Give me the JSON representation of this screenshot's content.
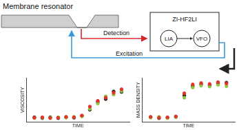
{
  "diagram": {
    "membrane_label": "Membrane resonator",
    "instrument": "ZI-HF2LI",
    "blocks": [
      "LIA",
      "VFO"
    ],
    "detection": "Detection",
    "excitation": "Excitation"
  },
  "chart_data": [
    {
      "type": "scatter",
      "xlabel": "TIME",
      "ylabel": "VISCOSITY",
      "tick_labels": false,
      "grid": false,
      "marker": "circle",
      "xlim": [
        0,
        13
      ],
      "ylim": [
        0,
        10
      ],
      "x": [
        1,
        2,
        3,
        4,
        5,
        6,
        7,
        8,
        9,
        10,
        11,
        12
      ],
      "series": [
        {
          "color": "#e5322b",
          "values": [
            1.0,
            1.1,
            0.9,
            1.0,
            1.2,
            1.1,
            1.5,
            3.5,
            4.8,
            5.5,
            6.6,
            7.4
          ]
        },
        {
          "color": "#8dc63f",
          "values": [
            0.9,
            1.0,
            1.0,
            1.1,
            1.0,
            1.2,
            1.3,
            3.0,
            4.2,
            5.8,
            6.2,
            7.0
          ]
        },
        {
          "color": "#222222",
          "values": [
            1.1,
            0.9,
            1.1,
            0.9,
            1.1,
            1.0,
            1.4,
            2.8,
            4.5,
            5.2,
            6.9,
            6.8
          ]
        }
      ]
    },
    {
      "type": "scatter",
      "xlabel": "TIME",
      "ylabel": "MASS DENSITY",
      "tick_labels": false,
      "grid": false,
      "marker": "circle",
      "xlim": [
        0,
        11
      ],
      "ylim": [
        0,
        10
      ],
      "x": [
        1,
        2,
        3,
        4,
        5,
        6,
        7,
        8,
        9,
        10
      ],
      "series": [
        {
          "color": "#e5322b",
          "values": [
            1.2,
            1.0,
            1.1,
            1.3,
            6.5,
            8.5,
            8.8,
            8.6,
            9.0,
            8.7
          ]
        },
        {
          "color": "#8dc63f",
          "values": [
            1.0,
            1.2,
            0.9,
            1.1,
            5.5,
            7.8,
            8.2,
            8.0,
            8.4,
            8.1
          ]
        },
        {
          "color": "#222222",
          "values": [
            1.1,
            0.9,
            1.0,
            1.2,
            6.0,
            8.1,
            8.5,
            8.3,
            8.7,
            8.9
          ]
        }
      ]
    }
  ]
}
